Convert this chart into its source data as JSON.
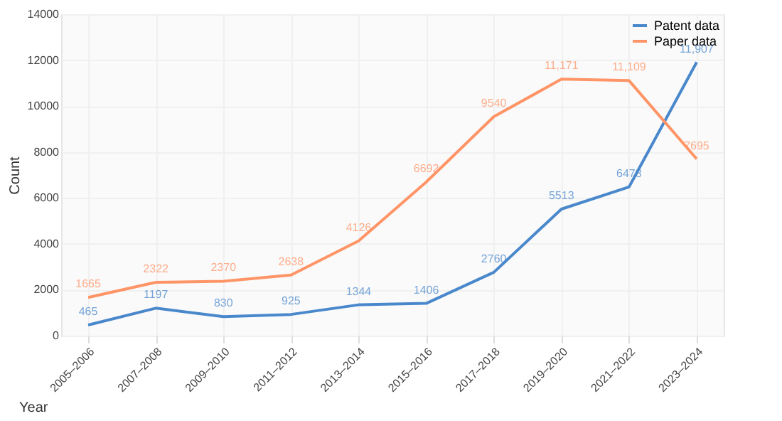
{
  "chart_data": {
    "type": "line",
    "xlabel": "Year",
    "ylabel": "Count",
    "categories": [
      "2005–2006",
      "2007–2008",
      "2009–2010",
      "2011–2012",
      "2013–2014",
      "2015–2016",
      "2017–2018",
      "2019–2020",
      "2021–2022",
      "2023–2024"
    ],
    "series": [
      {
        "name": "Patent data",
        "color": "#4a88cc",
        "values": [
          465,
          1197,
          830,
          925,
          1344,
          1406,
          2760,
          5513,
          6478,
          11907
        ],
        "value_labels": [
          "465",
          "1197",
          "830",
          "925",
          "1344",
          "1406",
          "2760",
          "5513",
          "6478",
          "11,907"
        ]
      },
      {
        "name": "Paper data",
        "color": "#ff9466",
        "values": [
          1665,
          2322,
          2370,
          2638,
          4126,
          6692,
          9540,
          11171,
          11109,
          7695
        ],
        "value_labels": [
          "1665",
          "2322",
          "2370",
          "2638",
          "4126",
          "6692",
          "9540",
          "11,171",
          "11,109",
          "7695"
        ]
      }
    ],
    "ylim": [
      0,
      14000
    ],
    "yticks": [
      0,
      2000,
      4000,
      6000,
      8000,
      10000,
      12000,
      14000
    ],
    "grid": true,
    "legend": "top right",
    "line_style": "solid"
  }
}
